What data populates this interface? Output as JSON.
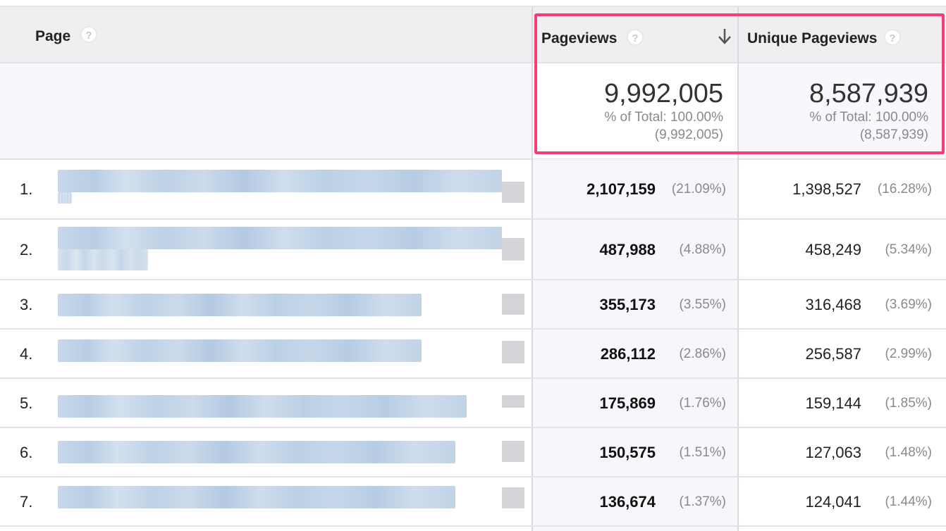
{
  "columns": {
    "page": "Page",
    "pageviews": "Pageviews",
    "unique_pageviews": "Unique Pageviews",
    "help_glyph": "?"
  },
  "totals": {
    "pageviews": {
      "value": "9,992,005",
      "percent": "% of Total: 100.00%",
      "total": "(9,992,005)"
    },
    "unique_pageviews": {
      "value": "8,587,939",
      "percent": "% of Total: 100.00%",
      "total": "(8,587,939)"
    }
  },
  "rows": [
    {
      "rank": "1.",
      "pageviews": "2,107,159",
      "pv_pct": "(21.09%)",
      "unique": "1,398,527",
      "u_pct": "(16.28%)"
    },
    {
      "rank": "2.",
      "pageviews": "487,988",
      "pv_pct": "(4.88%)",
      "unique": "458,249",
      "u_pct": "(5.34%)"
    },
    {
      "rank": "3.",
      "pageviews": "355,173",
      "pv_pct": "(3.55%)",
      "unique": "316,468",
      "u_pct": "(3.69%)"
    },
    {
      "rank": "4.",
      "pageviews": "286,112",
      "pv_pct": "(2.86%)",
      "unique": "256,587",
      "u_pct": "(2.99%)"
    },
    {
      "rank": "5.",
      "pageviews": "175,869",
      "pv_pct": "(1.76%)",
      "unique": "159,144",
      "u_pct": "(1.85%)"
    },
    {
      "rank": "6.",
      "pageviews": "150,575",
      "pv_pct": "(1.51%)",
      "unique": "127,063",
      "u_pct": "(1.48%)"
    },
    {
      "rank": "7.",
      "pageviews": "136,674",
      "pv_pct": "(1.37%)",
      "unique": "124,041",
      "u_pct": "(1.44%)"
    }
  ],
  "colors": {
    "highlight": "#f43f75",
    "header_bg": "#efeff2",
    "link_blur": "#c9d8ea"
  },
  "icons": {
    "sort": "sort-descending-icon",
    "help": "help-icon"
  }
}
